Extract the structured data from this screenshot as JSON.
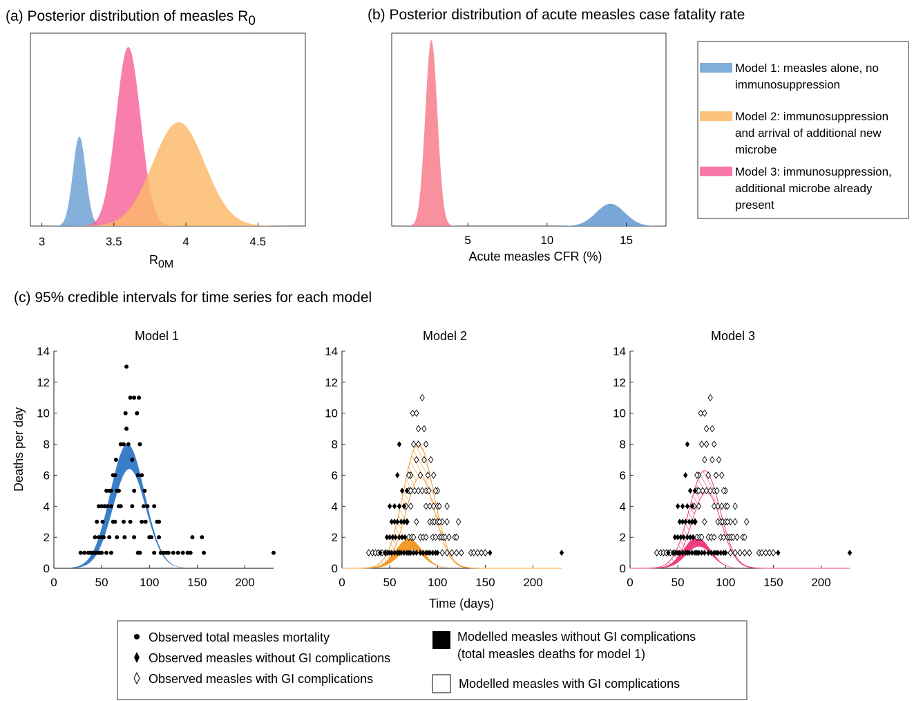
{
  "panel_a": {
    "title_main": "(a) Posterior distribution of measles R",
    "title_sub": "0",
    "xlabel_main": "R",
    "xlabel_sub": "0M",
    "x_ticks": [
      "3",
      "3.5",
      "4",
      "4.5"
    ]
  },
  "panel_b": {
    "title": "(b) Posterior distribution of acute measles case fatality rate",
    "xlabel": "Acute measles CFR (%)",
    "x_ticks": [
      "5",
      "10",
      "15"
    ]
  },
  "panel_c": {
    "title": "(c) 95% credible intervals for time series for each model",
    "ylabel": "Deaths per day",
    "xlabel": "Time (days)",
    "model_titles": [
      "Model 1",
      "Model 2",
      "Model 3"
    ],
    "x_ticks": [
      "0",
      "50",
      "100",
      "150",
      "200"
    ],
    "y_ticks": [
      "0",
      "2",
      "4",
      "6",
      "8",
      "10",
      "12",
      "14"
    ]
  },
  "legend_models": [
    {
      "line1": "Model 1: measles alone, no",
      "line2": "immunosuppression",
      "line3": "",
      "color": "#6a9fd4"
    },
    {
      "line1": "Model 2: immunosuppression",
      "line2": "and arrival of additional new",
      "line3": "microbe",
      "color": "#fbb869"
    },
    {
      "line1": "Model 3: immunosuppression,",
      "line2": "additional microbe already",
      "line3": "present",
      "color": "#f7629a"
    }
  ],
  "legend_bottom": {
    "observed_total": "Observed total measles mortality",
    "observed_without_gi": "Observed measles without GI complications",
    "observed_with_gi": "Observed measles with GI complications",
    "modelled_without_gi_1": "Modelled measles without GI complications",
    "modelled_without_gi_2": "(total measles deaths for model 1)",
    "modelled_with_gi": "Modelled measles with GI complications"
  },
  "colors": {
    "model1": "#6a9fd4",
    "model1_band": "#3a7ec7",
    "model2": "#fbb869",
    "model2_band": "#f39a2c",
    "model3": "#f7629a",
    "model3_band": "#ef3f80",
    "overlap": "#fb8a5a"
  },
  "chart_data": [
    {
      "type": "area",
      "x_range": [
        2.92,
        4.83
      ],
      "series": [
        {
          "name": "Model 1",
          "peak_x": 3.26,
          "sd": 0.045
        },
        {
          "name": "Model 3",
          "peak_x": 3.6,
          "sd": 0.085
        },
        {
          "name": "Model 2",
          "peak_x": 3.95,
          "sd": 0.18
        }
      ],
      "relative_peak_height": [
        0.5,
        1.0,
        0.58
      ]
    },
    {
      "type": "area",
      "x_range": [
        0.2,
        17.5
      ],
      "series": [
        {
          "name": "Model 2",
          "peak_x": 2.7,
          "sd": 0.38
        },
        {
          "name": "Model 3",
          "peak_x": 2.7,
          "sd": 0.38
        },
        {
          "name": "Model 1",
          "peak_x": 14.0,
          "sd": 0.9
        }
      ],
      "relative_peak_height": [
        1.0,
        1.0,
        0.12
      ]
    },
    {
      "type": "scatter",
      "name": "time series",
      "xlim": [
        0,
        230
      ],
      "ylim": [
        0,
        14
      ],
      "model1_band": {
        "center": 77,
        "sd": 18,
        "lower_peak": 6.4,
        "upper_peak": 8.0
      },
      "model2_band_without_gi": {
        "center": 70,
        "sd": 14,
        "lower_peak": 1.2,
        "upper_peak": 1.9
      },
      "model2_band_with_gi": {
        "center": 80,
        "sd": 16,
        "lower_peak": 5.9,
        "upper_peak": 8.0
      },
      "model3_band_without_gi": {
        "center": 70,
        "sd": 14,
        "lower_peak": 1.4,
        "upper_peak": 2.0
      },
      "model3_band_with_gi": {
        "center": 78,
        "sd": 16,
        "lower_peak": 4.9,
        "upper_peak": 6.3
      },
      "observed_total": [
        [
          28,
          1
        ],
        [
          32,
          1
        ],
        [
          36,
          1
        ],
        [
          38,
          1
        ],
        [
          40,
          1
        ],
        [
          42,
          1
        ],
        [
          44,
          1
        ],
        [
          46,
          1
        ],
        [
          48,
          1
        ],
        [
          50,
          1
        ],
        [
          43,
          2
        ],
        [
          47,
          2
        ],
        [
          50,
          2
        ],
        [
          52,
          2
        ],
        [
          45,
          3
        ],
        [
          51,
          3
        ],
        [
          47,
          4
        ],
        [
          50,
          4
        ],
        [
          53,
          4
        ],
        [
          56,
          4
        ],
        [
          55,
          5
        ],
        [
          58,
          5
        ],
        [
          60,
          5
        ],
        [
          62,
          6
        ],
        [
          64,
          6
        ],
        [
          66,
          5
        ],
        [
          68,
          5
        ],
        [
          65,
          7
        ],
        [
          70,
          8
        ],
        [
          73,
          8
        ],
        [
          76,
          9
        ],
        [
          75,
          10
        ],
        [
          78,
          8
        ],
        [
          80,
          11
        ],
        [
          84,
          11
        ],
        [
          89,
          11
        ],
        [
          87,
          10
        ],
        [
          76,
          13
        ],
        [
          82,
          7
        ],
        [
          88,
          6
        ],
        [
          90,
          8
        ],
        [
          92,
          6
        ],
        [
          95,
          5
        ],
        [
          94,
          4
        ],
        [
          92,
          3
        ],
        [
          96,
          3
        ],
        [
          98,
          4
        ],
        [
          100,
          2
        ],
        [
          102,
          2
        ],
        [
          105,
          4
        ],
        [
          108,
          3
        ],
        [
          110,
          3
        ],
        [
          112,
          1
        ],
        [
          115,
          1
        ],
        [
          118,
          1
        ],
        [
          120,
          1
        ],
        [
          125,
          1
        ],
        [
          105,
          1
        ],
        [
          110,
          2
        ],
        [
          130,
          1
        ],
        [
          135,
          1
        ],
        [
          140,
          1
        ],
        [
          143,
          1
        ],
        [
          145,
          2
        ],
        [
          155,
          2
        ],
        [
          157,
          1
        ],
        [
          230,
          1
        ],
        [
          55,
          1
        ],
        [
          60,
          1
        ],
        [
          62,
          3
        ],
        [
          70,
          4
        ],
        [
          73,
          3
        ],
        [
          74,
          2
        ],
        [
          80,
          3
        ],
        [
          82,
          4
        ],
        [
          84,
          2
        ],
        [
          90,
          1
        ],
        [
          88,
          1
        ],
        [
          84,
          5
        ],
        [
          64,
          3
        ],
        [
          66,
          2
        ],
        [
          68,
          4
        ],
        [
          58,
          2
        ],
        [
          60,
          4
        ]
      ],
      "observed_without_gi": [
        [
          40,
          1
        ],
        [
          45,
          1
        ],
        [
          48,
          1
        ],
        [
          50,
          1
        ],
        [
          52,
          1
        ],
        [
          55,
          1
        ],
        [
          58,
          1
        ],
        [
          60,
          1
        ],
        [
          62,
          1
        ],
        [
          65,
          1
        ],
        [
          68,
          1
        ],
        [
          70,
          1
        ],
        [
          72,
          1
        ],
        [
          75,
          1
        ],
        [
          78,
          1
        ],
        [
          82,
          1
        ],
        [
          85,
          1
        ],
        [
          88,
          1
        ],
        [
          90,
          1
        ],
        [
          92,
          1
        ],
        [
          95,
          1
        ],
        [
          98,
          1
        ],
        [
          100,
          1
        ],
        [
          47,
          2
        ],
        [
          50,
          2
        ],
        [
          53,
          2
        ],
        [
          56,
          2
        ],
        [
          60,
          2
        ],
        [
          63,
          2
        ],
        [
          66,
          2
        ],
        [
          52,
          3
        ],
        [
          55,
          3
        ],
        [
          58,
          3
        ],
        [
          62,
          3
        ],
        [
          65,
          3
        ],
        [
          68,
          3
        ],
        [
          50,
          4
        ],
        [
          55,
          4
        ],
        [
          60,
          4
        ],
        [
          65,
          4
        ],
        [
          58,
          6
        ],
        [
          63,
          5
        ],
        [
          68,
          5
        ],
        [
          60,
          8
        ],
        [
          155,
          1
        ],
        [
          230,
          1
        ]
      ],
      "observed_with_gi": [
        [
          28,
          1
        ],
        [
          32,
          1
        ],
        [
          35,
          1
        ],
        [
          38,
          1
        ],
        [
          42,
          1
        ],
        [
          46,
          1
        ],
        [
          70,
          2
        ],
        [
          73,
          2
        ],
        [
          75,
          2
        ],
        [
          78,
          3
        ],
        [
          82,
          2
        ],
        [
          85,
          2
        ],
        [
          88,
          2
        ],
        [
          92,
          3
        ],
        [
          95,
          2
        ],
        [
          98,
          2
        ],
        [
          102,
          2
        ],
        [
          105,
          1
        ],
        [
          110,
          1
        ],
        [
          115,
          1
        ],
        [
          120,
          1
        ],
        [
          125,
          1
        ],
        [
          135,
          1
        ],
        [
          138,
          1
        ],
        [
          142,
          1
        ],
        [
          146,
          1
        ],
        [
          150,
          1
        ],
        [
          67,
          4
        ],
        [
          72,
          4
        ],
        [
          76,
          5
        ],
        [
          80,
          5
        ],
        [
          84,
          5
        ],
        [
          88,
          4
        ],
        [
          92,
          4
        ],
        [
          96,
          4
        ],
        [
          100,
          5
        ],
        [
          104,
          2
        ],
        [
          106,
          2
        ],
        [
          110,
          3
        ],
        [
          112,
          2
        ],
        [
          118,
          2
        ],
        [
          120,
          2
        ],
        [
          122,
          3
        ],
        [
          75,
          8
        ],
        [
          80,
          9
        ],
        [
          78,
          7
        ],
        [
          86,
          9
        ],
        [
          88,
          8
        ],
        [
          90,
          6
        ],
        [
          93,
          7
        ],
        [
          96,
          6
        ],
        [
          98,
          5
        ],
        [
          100,
          4
        ],
        [
          102,
          4
        ],
        [
          105,
          3
        ],
        [
          108,
          2
        ],
        [
          112,
          2
        ],
        [
          72,
          6
        ],
        [
          70,
          6
        ],
        [
          74,
          10
        ],
        [
          78,
          10
        ],
        [
          80,
          8
        ],
        [
          84,
          11
        ],
        [
          82,
          6
        ],
        [
          86,
          7
        ],
        [
          88,
          5
        ],
        [
          91,
          5
        ],
        [
          95,
          3
        ],
        [
          97,
          3
        ],
        [
          100,
          3
        ],
        [
          102,
          3
        ],
        [
          110,
          4
        ],
        [
          68,
          3
        ],
        [
          70,
          5
        ],
        [
          72,
          5
        ]
      ]
    }
  ]
}
